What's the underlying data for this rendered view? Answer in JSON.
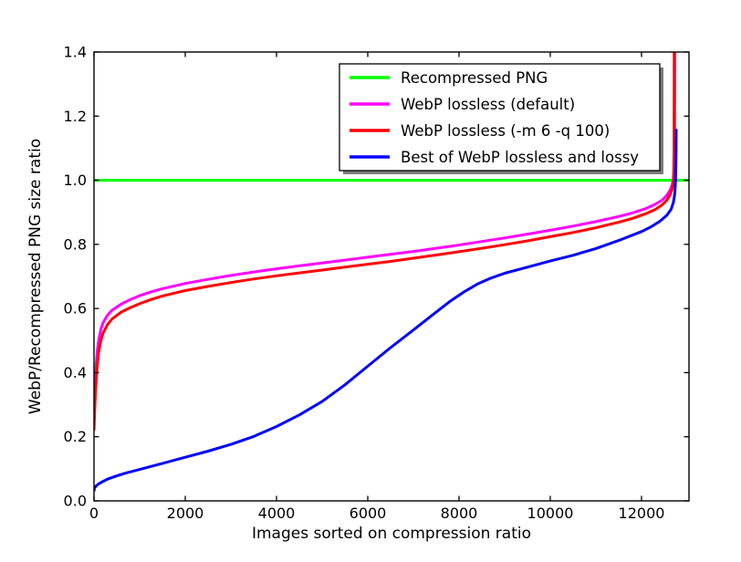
{
  "figure": {
    "background": "#ffffff"
  },
  "chart_data": {
    "type": "line",
    "title": "",
    "xlabel": "Images sorted on compression ratio",
    "ylabel": "WebP/Recompressed PNG size ratio",
    "xlim": [
      0,
      13040
    ],
    "ylim": [
      0.0,
      1.4
    ],
    "xtick_values": [
      0,
      2000,
      4000,
      6000,
      8000,
      10000,
      12000
    ],
    "xtick_labels": [
      "0",
      "2000",
      "4000",
      "6000",
      "8000",
      "10000",
      "12000"
    ],
    "ytick_values": [
      0.0,
      0.2,
      0.4,
      0.6,
      0.8,
      1.0,
      1.2,
      1.4
    ],
    "ytick_labels": [
      "0.0",
      "0.2",
      "0.4",
      "0.6",
      "0.8",
      "1.0",
      "1.2",
      "1.4"
    ],
    "grid": false,
    "legend": {
      "position": "upper right inside",
      "background": "#ffffff",
      "border_color": "#000000",
      "shadow": true,
      "shadow_color": "#7a7a7a"
    },
    "series": [
      {
        "name": "Recompressed PNG",
        "color": "#00ff00",
        "points": [
          [
            0,
            1.0
          ],
          [
            13040,
            1.0
          ]
        ]
      },
      {
        "name": "WebP lossless (default)",
        "color": "#ff00ff",
        "points": [
          [
            0,
            0.27
          ],
          [
            20,
            0.35
          ],
          [
            40,
            0.41
          ],
          [
            70,
            0.465
          ],
          [
            100,
            0.5
          ],
          [
            150,
            0.535
          ],
          [
            200,
            0.556
          ],
          [
            300,
            0.58
          ],
          [
            400,
            0.595
          ],
          [
            600,
            0.614
          ],
          [
            800,
            0.628
          ],
          [
            1000,
            0.64
          ],
          [
            1250,
            0.652
          ],
          [
            1500,
            0.662
          ],
          [
            2000,
            0.678
          ],
          [
            2500,
            0.691
          ],
          [
            3000,
            0.703
          ],
          [
            3500,
            0.714
          ],
          [
            4000,
            0.724
          ],
          [
            4500,
            0.733
          ],
          [
            5000,
            0.742
          ],
          [
            5500,
            0.751
          ],
          [
            6000,
            0.76
          ],
          [
            6500,
            0.769
          ],
          [
            7000,
            0.778
          ],
          [
            7500,
            0.788
          ],
          [
            8000,
            0.798
          ],
          [
            8500,
            0.809
          ],
          [
            9000,
            0.82
          ],
          [
            9500,
            0.832
          ],
          [
            10000,
            0.844
          ],
          [
            10500,
            0.857
          ],
          [
            11000,
            0.871
          ],
          [
            11500,
            0.887
          ],
          [
            11800,
            0.898
          ],
          [
            12100,
            0.912
          ],
          [
            12300,
            0.925
          ],
          [
            12450,
            0.938
          ],
          [
            12550,
            0.952
          ],
          [
            12620,
            0.968
          ],
          [
            12670,
            0.985
          ],
          [
            12700,
            1.005
          ],
          [
            12715,
            1.04
          ],
          [
            12725,
            1.1
          ],
          [
            12730,
            1.42
          ]
        ]
      },
      {
        "name": "WebP lossless (-m 6 -q 100)",
        "color": "#ff0000",
        "points": [
          [
            0,
            0.22
          ],
          [
            20,
            0.3
          ],
          [
            40,
            0.36
          ],
          [
            70,
            0.42
          ],
          [
            100,
            0.462
          ],
          [
            150,
            0.5
          ],
          [
            200,
            0.524
          ],
          [
            300,
            0.551
          ],
          [
            400,
            0.568
          ],
          [
            600,
            0.589
          ],
          [
            800,
            0.603
          ],
          [
            1000,
            0.615
          ],
          [
            1250,
            0.628
          ],
          [
            1500,
            0.639
          ],
          [
            2000,
            0.656
          ],
          [
            2500,
            0.669
          ],
          [
            3000,
            0.681
          ],
          [
            3500,
            0.692
          ],
          [
            4000,
            0.702
          ],
          [
            4500,
            0.711
          ],
          [
            5000,
            0.72
          ],
          [
            5500,
            0.729
          ],
          [
            6000,
            0.738
          ],
          [
            6500,
            0.747
          ],
          [
            7000,
            0.757
          ],
          [
            7500,
            0.767
          ],
          [
            8000,
            0.777
          ],
          [
            8500,
            0.788
          ],
          [
            9000,
            0.799
          ],
          [
            9500,
            0.811
          ],
          [
            10000,
            0.824
          ],
          [
            10500,
            0.837
          ],
          [
            11000,
            0.852
          ],
          [
            11500,
            0.869
          ],
          [
            11800,
            0.881
          ],
          [
            12100,
            0.896
          ],
          [
            12300,
            0.909
          ],
          [
            12450,
            0.923
          ],
          [
            12550,
            0.937
          ],
          [
            12620,
            0.953
          ],
          [
            12670,
            0.972
          ],
          [
            12695,
            0.995
          ],
          [
            12705,
            1.03
          ],
          [
            12712,
            1.1
          ],
          [
            12716,
            1.4
          ]
        ]
      },
      {
        "name": "Best of WebP lossless and lossy",
        "color": "#0000ff",
        "points": [
          [
            0,
            0.03
          ],
          [
            10,
            0.04
          ],
          [
            50,
            0.047
          ],
          [
            100,
            0.053
          ],
          [
            200,
            0.061
          ],
          [
            300,
            0.068
          ],
          [
            500,
            0.078
          ],
          [
            700,
            0.087
          ],
          [
            1000,
            0.098
          ],
          [
            1500,
            0.117
          ],
          [
            2000,
            0.136
          ],
          [
            2500,
            0.155
          ],
          [
            3000,
            0.176
          ],
          [
            3500,
            0.201
          ],
          [
            4000,
            0.232
          ],
          [
            4500,
            0.268
          ],
          [
            5000,
            0.31
          ],
          [
            5500,
            0.362
          ],
          [
            6000,
            0.42
          ],
          [
            6500,
            0.478
          ],
          [
            7000,
            0.533
          ],
          [
            7400,
            0.578
          ],
          [
            7800,
            0.622
          ],
          [
            8100,
            0.651
          ],
          [
            8400,
            0.676
          ],
          [
            8700,
            0.695
          ],
          [
            9000,
            0.71
          ],
          [
            9500,
            0.729
          ],
          [
            10000,
            0.748
          ],
          [
            10500,
            0.766
          ],
          [
            11000,
            0.787
          ],
          [
            11500,
            0.812
          ],
          [
            12000,
            0.84
          ],
          [
            12200,
            0.854
          ],
          [
            12400,
            0.872
          ],
          [
            12550,
            0.89
          ],
          [
            12650,
            0.91
          ],
          [
            12700,
            0.932
          ],
          [
            12730,
            0.96
          ],
          [
            12745,
            1.0
          ],
          [
            12755,
            1.08
          ],
          [
            12760,
            1.16
          ]
        ]
      }
    ]
  }
}
